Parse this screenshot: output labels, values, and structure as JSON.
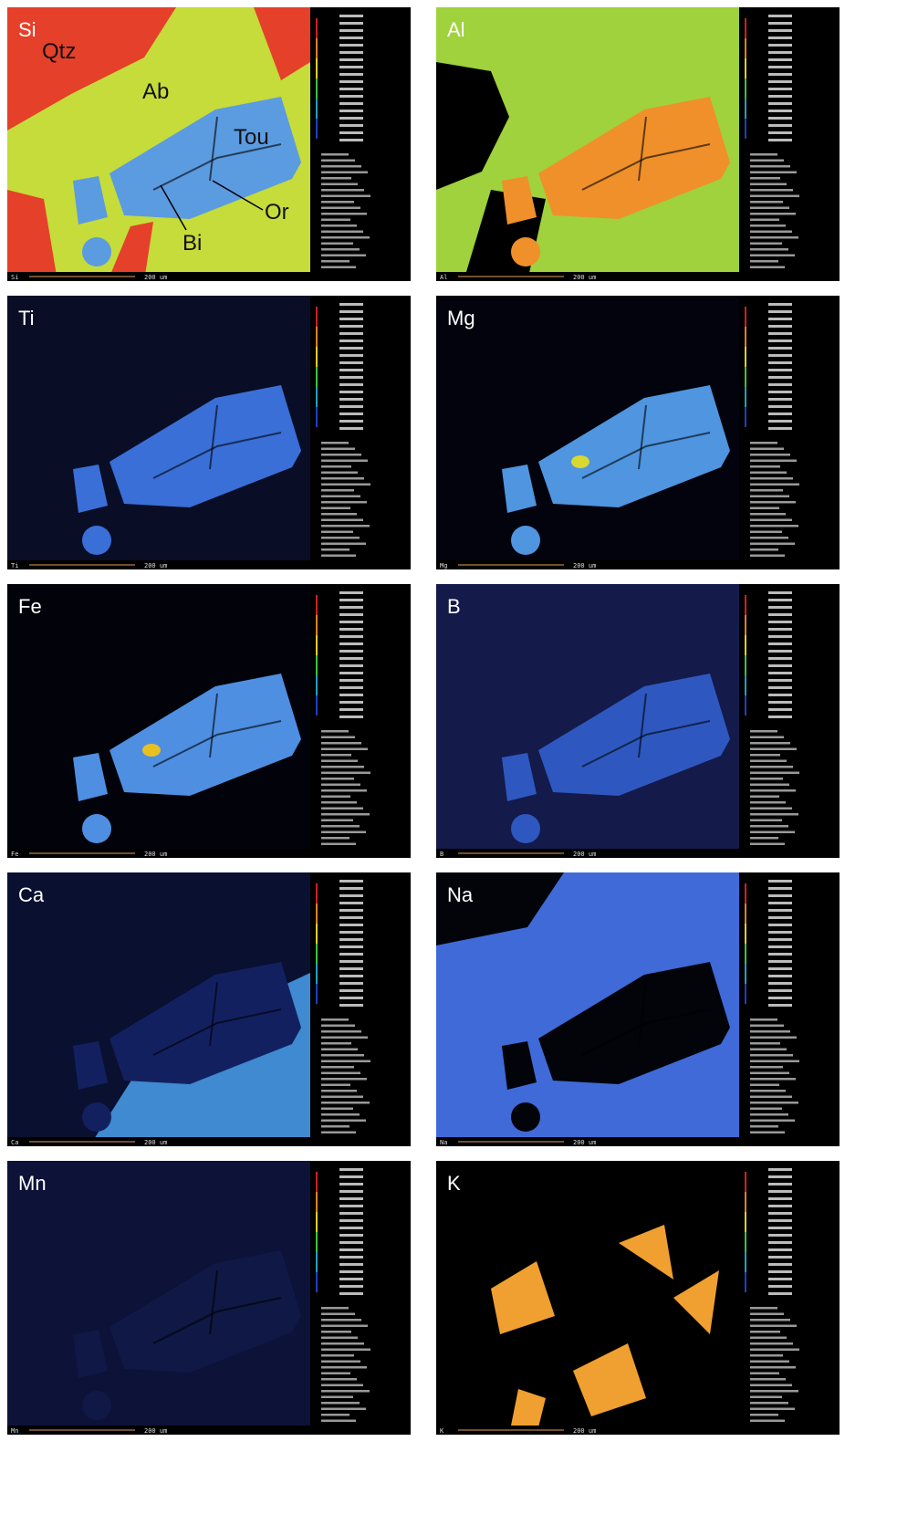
{
  "panels": [
    {
      "label": "Si",
      "corner": "Si",
      "scale": "200 um",
      "annotations": [
        "Qtz",
        "Ab",
        "Tou",
        "Or",
        "Bi"
      ]
    },
    {
      "label": "Al",
      "corner": "Al",
      "scale": "200 um"
    },
    {
      "label": "Ti",
      "corner": "Ti",
      "scale": "200 um"
    },
    {
      "label": "Mg",
      "corner": "Mg",
      "scale": "200 um"
    },
    {
      "label": "Fe",
      "corner": "Fe",
      "scale": "200 um"
    },
    {
      "label": "B",
      "corner": "B",
      "scale": "200 um"
    },
    {
      "label": "Ca",
      "corner": "Ca",
      "scale": "200 um"
    },
    {
      "label": "Na",
      "corner": "Na",
      "scale": "200 um"
    },
    {
      "label": "Mn",
      "corner": "Mn",
      "scale": "200 um"
    },
    {
      "label": "K",
      "corner": "K",
      "scale": "200 um"
    }
  ]
}
